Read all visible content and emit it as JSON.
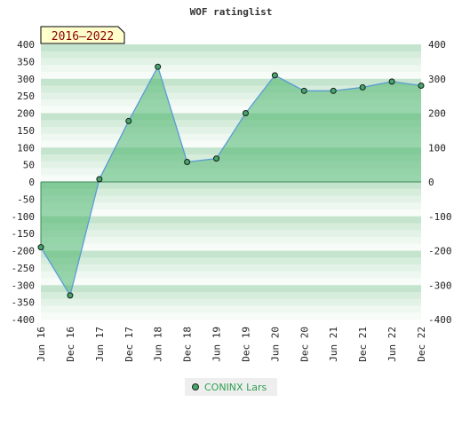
{
  "chart_data": {
    "type": "area",
    "title": "WOF ratinglist",
    "badge": "2016–2022",
    "categories": [
      "Jun 16",
      "Dec 16",
      "Jun 17",
      "Dec 17",
      "Jun 18",
      "Dec 18",
      "Jun 19",
      "Dec 19",
      "Jun 20",
      "Dec 20",
      "Jun 21",
      "Dec 21",
      "Jun 22",
      "Dec 22"
    ],
    "series": [
      {
        "name": "CONINX Lars",
        "values": [
          -190,
          -330,
          8,
          177,
          335,
          58,
          68,
          200,
          310,
          265,
          265,
          275,
          292,
          280
        ]
      }
    ],
    "ylim": [
      -400,
      400
    ],
    "yticks": [
      400,
      350,
      300,
      250,
      200,
      150,
      100,
      50,
      0,
      -50,
      -100,
      -150,
      -200,
      -250,
      -300,
      -350,
      -400
    ],
    "yticks_right": [
      400,
      300,
      200,
      100,
      0,
      -100,
      -200,
      -300,
      -400
    ],
    "xlabel": "",
    "ylabel": "",
    "legend_position": "bottom-center",
    "colors": {
      "fill": "#4cb46e",
      "line": "#5b9bd5",
      "marker": "#43a66a",
      "band_dark": "#cfe9d7",
      "band_light": "#eef7f1",
      "badge_bg": "#ffffcc",
      "badge_text": "#8b0000"
    }
  }
}
